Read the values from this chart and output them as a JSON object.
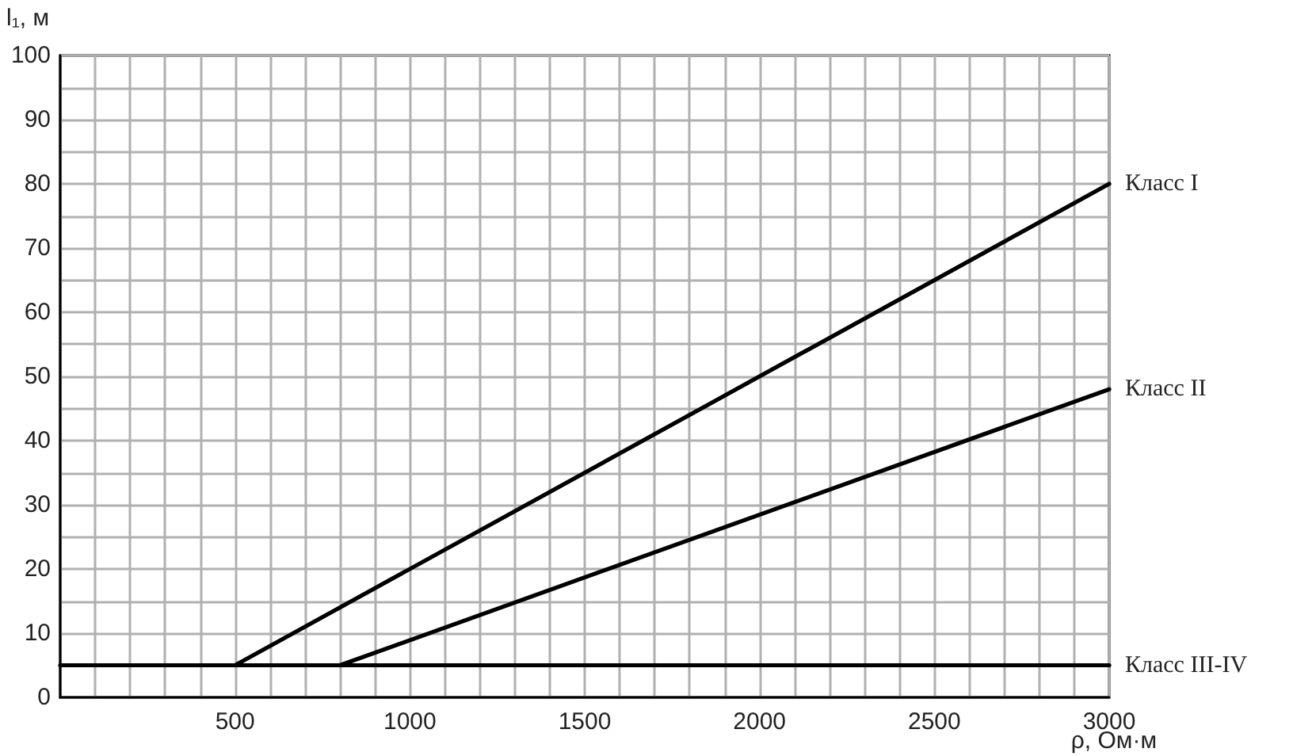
{
  "chart_data": {
    "type": "line",
    "xlabel": "ρ, Ом·м",
    "ylabel": "l₁, м",
    "xlim": [
      0,
      3000
    ],
    "ylim": [
      0,
      100
    ],
    "xticks": [
      {
        "value": 0,
        "label": null
      },
      {
        "value": 100,
        "label": null
      },
      {
        "value": 200,
        "label": null
      },
      {
        "value": 300,
        "label": null
      },
      {
        "value": 400,
        "label": null
      },
      500,
      {
        "value": 600,
        "label": null
      },
      {
        "value": 700,
        "label": null
      },
      {
        "value": 800,
        "label": null
      },
      {
        "value": 900,
        "label": null
      },
      1000,
      {
        "value": 1100,
        "label": null
      },
      {
        "value": 1200,
        "label": null
      },
      {
        "value": 1300,
        "label": null
      },
      {
        "value": 1400,
        "label": null
      },
      1500,
      {
        "value": 1600,
        "label": null
      },
      {
        "value": 1700,
        "label": null
      },
      {
        "value": 1800,
        "label": null
      },
      {
        "value": 1900,
        "label": null
      },
      2000,
      {
        "value": 2100,
        "label": null
      },
      {
        "value": 2200,
        "label": null
      },
      {
        "value": 2300,
        "label": null
      },
      {
        "value": 2400,
        "label": null
      },
      2500,
      {
        "value": 2600,
        "label": null
      },
      {
        "value": 2700,
        "label": null
      },
      {
        "value": 2800,
        "label": null
      },
      {
        "value": 2900,
        "label": null
      },
      3000
    ],
    "yticks": [
      0,
      {
        "value": 5,
        "label": null
      },
      10,
      {
        "value": 15,
        "label": null
      },
      20,
      {
        "value": 25,
        "label": null
      },
      30,
      {
        "value": 35,
        "label": null
      },
      40,
      {
        "value": 45,
        "label": null
      },
      50,
      {
        "value": 55,
        "label": null
      },
      60,
      {
        "value": 65,
        "label": null
      },
      70,
      {
        "value": 75,
        "label": null
      },
      80,
      {
        "value": 85,
        "label": null
      },
      90,
      {
        "value": 95,
        "label": null
      },
      100
    ],
    "grid": true,
    "legend": false,
    "marker": "none",
    "line_style": "solid",
    "series": [
      {
        "name": "Класс I",
        "color": "#000000",
        "x": [
          500,
          3000
        ],
        "values": [
          5,
          80
        ]
      },
      {
        "name": "Класс II",
        "color": "#000000",
        "x": [
          800,
          3000
        ],
        "values": [
          5,
          48
        ]
      },
      {
        "name": "Класс III-IV",
        "color": "#000000",
        "x": [
          0,
          3000
        ],
        "values": [
          5,
          5
        ]
      }
    ]
  }
}
